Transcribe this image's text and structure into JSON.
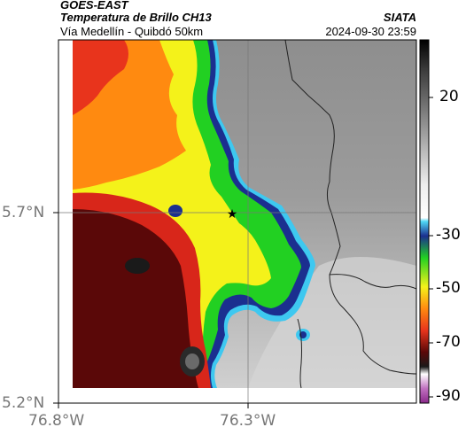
{
  "header": {
    "satellite": "GOES-EAST",
    "product": "Temperatura de Brillo CH13",
    "route": "Vía Medellín - Quibdó 50km",
    "organization": "SIATA",
    "timestamp": "2024-09-30 23:59"
  },
  "map": {
    "lat_ticks": [
      "5.7°N",
      "5.2°N"
    ],
    "lon_ticks": [
      "76.8°W",
      "76.3°W"
    ],
    "marker": "star-marker",
    "colors": {
      "warm_high": "#9a9a9a",
      "cyan": "#3ec8f0",
      "blue": "#1b2f8f",
      "green": "#22d022",
      "yellow": "#f4f21a",
      "orange": "#ff8a10",
      "red": "#e8341c",
      "darkred": "#5a0808",
      "black": "#1a1a1a"
    }
  },
  "colorbar": {
    "labels": [
      "20",
      "-30",
      "-50",
      "-70",
      "-90"
    ],
    "units": ""
  }
}
